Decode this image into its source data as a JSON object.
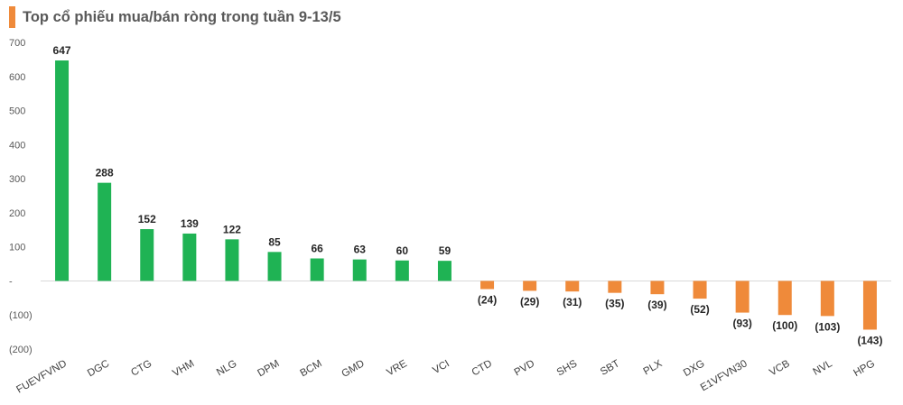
{
  "title": "Top cổ phiếu mua/bán ròng trong tuần 9-13/5",
  "colors": {
    "positive": "#1fb354",
    "negative": "#ef8a3a",
    "title_accent": "#ef8a3a"
  },
  "chart_data": {
    "type": "bar",
    "title": "Top cổ phiếu mua/bán ròng trong tuần 9-13/5",
    "xlabel": "",
    "ylabel": "",
    "categories": [
      "FUEVFVND",
      "DGC",
      "CTG",
      "VHM",
      "NLG",
      "DPM",
      "BCM",
      "GMD",
      "VRE",
      "VCI",
      "CTD",
      "PVD",
      "SHS",
      "SBT",
      "PLX",
      "DXG",
      "E1VFVN30",
      "VCB",
      "NVL",
      "HPG"
    ],
    "values": [
      647,
      288,
      152,
      139,
      122,
      85,
      66,
      63,
      60,
      59,
      -24,
      -29,
      -31,
      -35,
      -39,
      -52,
      -93,
      -100,
      -103,
      -143
    ],
    "data_labels": [
      "647",
      "288",
      "152",
      "139",
      "122",
      "85",
      "66",
      "63",
      "60",
      "59",
      "(24)",
      "(29)",
      "(31)",
      "(35)",
      "(39)",
      "(52)",
      "(93)",
      "(100)",
      "(103)",
      "(143)"
    ],
    "ylim": [
      -200,
      700
    ],
    "yticks": [
      700,
      600,
      500,
      400,
      300,
      200,
      100,
      0,
      -100,
      -200
    ],
    "ytick_labels": [
      "700",
      "600",
      "500",
      "400",
      "300",
      "200",
      "100",
      "-",
      "(100)",
      "(200)"
    ],
    "grid": false,
    "legend": "none"
  }
}
